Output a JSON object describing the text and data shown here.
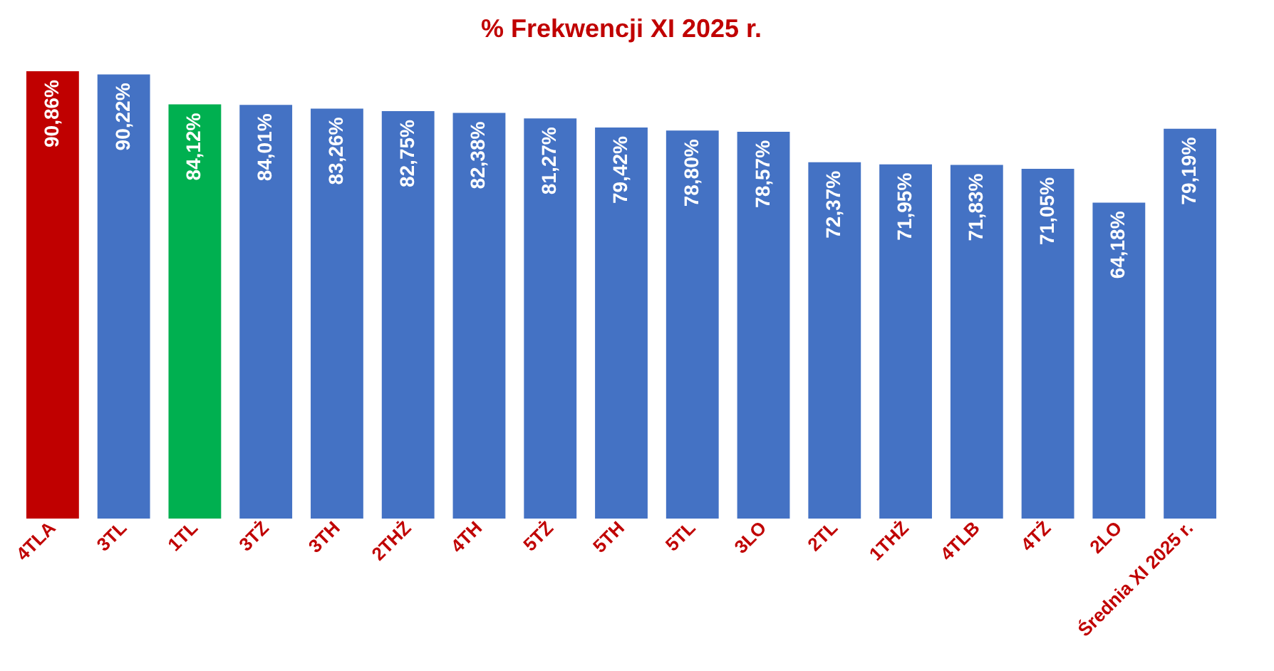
{
  "chart_data": {
    "type": "bar",
    "title": "% Frekwencji XI 2025 r.",
    "categories": [
      "4TLA",
      "3TL",
      "1TL",
      "3TŻ",
      "3TH",
      "2THŻ",
      "4TH",
      "5TŻ",
      "5TH",
      "5TL",
      "3LO",
      "2TL",
      "1THŻ",
      "4TLB",
      "4TŻ",
      "2LO",
      "Średnia XI 2025 r."
    ],
    "values": [
      90.86,
      90.22,
      84.12,
      84.01,
      83.26,
      82.75,
      82.38,
      81.27,
      79.42,
      78.8,
      78.57,
      72.37,
      71.95,
      71.83,
      71.05,
      64.18,
      79.19
    ],
    "value_labels": [
      "90,86%",
      "90,22%",
      "84,12%",
      "84,01%",
      "83,26%",
      "82,75%",
      "82,38%",
      "81,27%",
      "79,42%",
      "78,80%",
      "78,57%",
      "72,37%",
      "71,95%",
      "71,83%",
      "71,05%",
      "64,18%",
      "79,19%"
    ],
    "colors": [
      "#c00000",
      "#4472c4",
      "#00b050",
      "#4472c4",
      "#4472c4",
      "#4472c4",
      "#4472c4",
      "#4472c4",
      "#4472c4",
      "#4472c4",
      "#4472c4",
      "#4472c4",
      "#4472c4",
      "#4472c4",
      "#4472c4",
      "#4472c4",
      "#4472c4"
    ],
    "grid": false,
    "tick_labels": "x"
  }
}
